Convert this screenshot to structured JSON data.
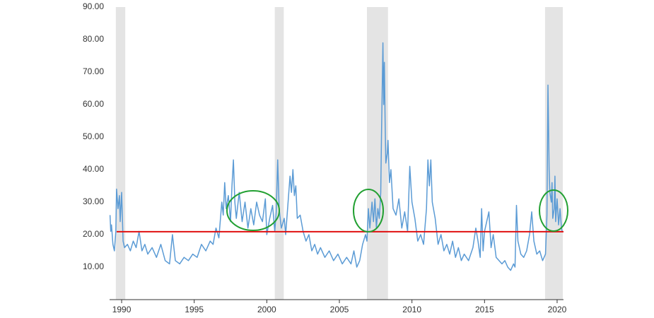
{
  "chart_data": {
    "type": "line",
    "x": [
      1989.2,
      1989.25,
      1989.3,
      1989.4,
      1989.5,
      1989.6,
      1989.65,
      1989.75,
      1989.85,
      1989.9,
      1990.0,
      1990.1,
      1990.2,
      1990.4,
      1990.6,
      1990.8,
      1991.0,
      1991.2,
      1991.4,
      1991.6,
      1991.8,
      1992.1,
      1992.4,
      1992.7,
      1993.0,
      1993.3,
      1993.5,
      1993.7,
      1994.0,
      1994.3,
      1994.6,
      1994.9,
      1995.2,
      1995.5,
      1995.8,
      1996.1,
      1996.3,
      1996.5,
      1996.7,
      1996.9,
      1997.0,
      1997.1,
      1997.2,
      1997.35,
      1997.5,
      1997.6,
      1997.7,
      1997.8,
      1997.9,
      1998.1,
      1998.3,
      1998.5,
      1998.7,
      1998.9,
      1999.1,
      1999.3,
      1999.5,
      1999.7,
      1999.9,
      2000.0,
      2000.2,
      2000.4,
      2000.55,
      2000.65,
      2000.75,
      2000.85,
      2001.0,
      2001.2,
      2001.3,
      2001.45,
      2001.6,
      2001.7,
      2001.8,
      2001.9,
      2002.0,
      2002.1,
      2002.3,
      2002.5,
      2002.7,
      2002.9,
      2003.1,
      2003.3,
      2003.5,
      2003.7,
      2004.0,
      2004.3,
      2004.6,
      2004.9,
      2005.2,
      2005.5,
      2005.8,
      2006.0,
      2006.2,
      2006.4,
      2006.6,
      2006.8,
      2006.9,
      2007.0,
      2007.1,
      2007.25,
      2007.35,
      2007.45,
      2007.55,
      2007.65,
      2007.75,
      2007.85,
      2007.9,
      2008.0,
      2008.05,
      2008.1,
      2008.15,
      2008.2,
      2008.3,
      2008.35,
      2008.45,
      2008.55,
      2008.7,
      2008.9,
      2009.1,
      2009.3,
      2009.5,
      2009.7,
      2009.85,
      2010.0,
      2010.2,
      2010.4,
      2010.6,
      2010.8,
      2011.0,
      2011.1,
      2011.2,
      2011.3,
      2011.4,
      2011.6,
      2011.8,
      2012.0,
      2012.2,
      2012.4,
      2012.6,
      2012.8,
      2013.0,
      2013.2,
      2013.4,
      2013.6,
      2013.9,
      2014.2,
      2014.4,
      2014.55,
      2014.7,
      2014.8,
      2014.9,
      2015.0,
      2015.15,
      2015.3,
      2015.45,
      2015.6,
      2015.8,
      2016.0,
      2016.2,
      2016.4,
      2016.6,
      2016.8,
      2017.0,
      2017.1,
      2017.2,
      2017.3,
      2017.5,
      2017.7,
      2017.9,
      2018.1,
      2018.25,
      2018.4,
      2018.6,
      2018.8,
      2019.0,
      2019.2,
      2019.3,
      2019.37,
      2019.45,
      2019.5,
      2019.6,
      2019.65,
      2019.7,
      2019.8,
      2019.85,
      2019.9,
      2020.0,
      2020.1,
      2020.2,
      2020.3,
      2020.35
    ],
    "series": [
      {
        "color": "#5b9bd5",
        "values": [
          26,
          21,
          23,
          17,
          15,
          21,
          34,
          28,
          32,
          24,
          33,
          18,
          16,
          17,
          15,
          18,
          16,
          21,
          15,
          17,
          14,
          16,
          13,
          17,
          12,
          11,
          20,
          12,
          11,
          13,
          12,
          14,
          13,
          17,
          15,
          18,
          17,
          22,
          19,
          30,
          26,
          36,
          28,
          32,
          24,
          35,
          43,
          30,
          25,
          33,
          24,
          30,
          22,
          28,
          23,
          30,
          26,
          24,
          31,
          20,
          25,
          29,
          21,
          27,
          43,
          28,
          22,
          25,
          20,
          29,
          38,
          33,
          40,
          32,
          35,
          25,
          26,
          21,
          18,
          20,
          15,
          17,
          14,
          16,
          13,
          15,
          12,
          14,
          11,
          13,
          11,
          15,
          10,
          12,
          17,
          20,
          18,
          28,
          22,
          30,
          24,
          31,
          22,
          28,
          25,
          33,
          50,
          79,
          60,
          73,
          55,
          42,
          45,
          49,
          36,
          40,
          28,
          26,
          31,
          22,
          27,
          21,
          41,
          30,
          25,
          18,
          20,
          17,
          28,
          43,
          35,
          43,
          30,
          25,
          17,
          20,
          15,
          17,
          14,
          18,
          13,
          16,
          12,
          14,
          12,
          16,
          22,
          18,
          13,
          28,
          15,
          21,
          24,
          27,
          16,
          20,
          13,
          12,
          11,
          12,
          10,
          9,
          11,
          10,
          29,
          18,
          14,
          13,
          15,
          20,
          27,
          18,
          14,
          15,
          12,
          14,
          26,
          66,
          40,
          33,
          30,
          36,
          25,
          28,
          38,
          24,
          31,
          23,
          28,
          22,
          21
        ]
      }
    ],
    "xlim": [
      1989.17,
      2020.44
    ],
    "xticks": [
      1990,
      1995,
      2000,
      2005,
      2010,
      2015,
      2020
    ],
    "ylim": [
      0,
      90
    ],
    "yticks": [
      {
        "value": 10,
        "label": "10.00"
      },
      {
        "value": 20,
        "label": "20.00"
      },
      {
        "value": 30,
        "label": "30.00"
      },
      {
        "value": 40,
        "label": "40.00"
      },
      {
        "value": 50,
        "label": "50.00"
      },
      {
        "value": 60,
        "label": "60.00"
      },
      {
        "value": 70,
        "label": "70.00"
      },
      {
        "value": 80,
        "label": "80.00"
      },
      {
        "value": 90,
        "label": "90.00"
      }
    ],
    "shaded_ranges": [
      [
        1989.6,
        1990.25
      ],
      [
        2000.55,
        2001.17
      ],
      [
        2006.9,
        2008.35
      ],
      [
        2019.17,
        2020.39
      ]
    ],
    "shade_color": "#e4e4e4",
    "reference_line": {
      "value": 20.9,
      "color": "#e01010"
    }
  }
}
